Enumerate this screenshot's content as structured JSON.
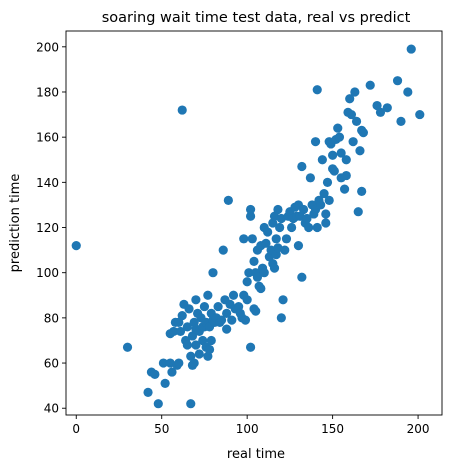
{
  "chart_data": {
    "type": "scatter",
    "title": "soaring wait time test data, real vs predict",
    "xlabel": "real time",
    "ylabel": "prediction time",
    "xlim": [
      -6,
      214
    ],
    "ylim": [
      37,
      207
    ],
    "xticks": [
      0,
      50,
      100,
      150,
      200
    ],
    "yticks": [
      40,
      60,
      80,
      100,
      120,
      140,
      160,
      180,
      200
    ],
    "grid": false,
    "color": "#1f77b4",
    "points": [
      [
        0,
        112
      ],
      [
        30,
        67
      ],
      [
        42,
        47
      ],
      [
        44,
        56
      ],
      [
        46,
        55
      ],
      [
        48,
        42
      ],
      [
        51,
        60
      ],
      [
        52,
        51
      ],
      [
        55,
        60
      ],
      [
        55,
        73
      ],
      [
        56,
        56
      ],
      [
        57,
        74
      ],
      [
        58,
        78
      ],
      [
        59,
        59
      ],
      [
        60,
        60
      ],
      [
        60,
        78
      ],
      [
        61,
        74
      ],
      [
        62,
        81
      ],
      [
        62,
        172
      ],
      [
        63,
        86
      ],
      [
        64,
        70
      ],
      [
        65,
        68
      ],
      [
        65,
        76
      ],
      [
        66,
        84
      ],
      [
        67,
        42
      ],
      [
        67,
        63
      ],
      [
        68,
        72
      ],
      [
        68,
        59
      ],
      [
        69,
        60
      ],
      [
        69,
        78
      ],
      [
        70,
        88
      ],
      [
        70,
        68
      ],
      [
        70,
        75
      ],
      [
        71,
        82
      ],
      [
        72,
        64
      ],
      [
        72,
        74
      ],
      [
        73,
        80
      ],
      [
        74,
        76
      ],
      [
        74,
        70
      ],
      [
        75,
        85
      ],
      [
        75,
        76
      ],
      [
        76,
        78
      ],
      [
        76,
        67
      ],
      [
        77,
        90
      ],
      [
        77,
        63
      ],
      [
        78,
        76
      ],
      [
        78,
        66
      ],
      [
        79,
        70
      ],
      [
        79,
        82
      ],
      [
        80,
        100
      ],
      [
        80,
        79
      ],
      [
        81,
        78
      ],
      [
        82,
        80
      ],
      [
        83,
        85
      ],
      [
        84,
        78
      ],
      [
        85,
        79
      ],
      [
        86,
        110
      ],
      [
        87,
        88
      ],
      [
        88,
        82
      ],
      [
        88,
        75
      ],
      [
        89,
        132
      ],
      [
        90,
        86
      ],
      [
        91,
        79
      ],
      [
        92,
        90
      ],
      [
        93,
        84
      ],
      [
        94,
        84
      ],
      [
        95,
        85
      ],
      [
        96,
        82
      ],
      [
        97,
        80
      ],
      [
        98,
        115
      ],
      [
        98,
        90
      ],
      [
        99,
        79
      ],
      [
        100,
        88
      ],
      [
        100,
        96
      ],
      [
        101,
        100
      ],
      [
        102,
        67
      ],
      [
        102,
        125
      ],
      [
        102,
        128
      ],
      [
        103,
        115
      ],
      [
        104,
        105
      ],
      [
        104,
        84
      ],
      [
        105,
        83
      ],
      [
        105,
        100
      ],
      [
        106,
        98
      ],
      [
        106,
        110
      ],
      [
        107,
        94
      ],
      [
        108,
        112
      ],
      [
        108,
        93
      ],
      [
        109,
        102
      ],
      [
        110,
        120
      ],
      [
        110,
        100
      ],
      [
        111,
        113
      ],
      [
        112,
        118
      ],
      [
        113,
        107
      ],
      [
        114,
        110
      ],
      [
        115,
        122
      ],
      [
        115,
        104
      ],
      [
        116,
        125
      ],
      [
        116,
        102
      ],
      [
        117,
        115
      ],
      [
        117,
        108
      ],
      [
        118,
        128
      ],
      [
        118,
        111
      ],
      [
        119,
        120
      ],
      [
        120,
        80
      ],
      [
        120,
        124
      ],
      [
        121,
        88
      ],
      [
        122,
        110
      ],
      [
        123,
        115
      ],
      [
        124,
        125
      ],
      [
        125,
        127
      ],
      [
        126,
        120
      ],
      [
        127,
        124
      ],
      [
        128,
        129
      ],
      [
        129,
        125
      ],
      [
        130,
        112
      ],
      [
        130,
        130
      ],
      [
        131,
        125
      ],
      [
        132,
        147
      ],
      [
        132,
        98
      ],
      [
        133,
        128
      ],
      [
        134,
        122
      ],
      [
        135,
        124
      ],
      [
        136,
        120
      ],
      [
        137,
        142
      ],
      [
        138,
        130
      ],
      [
        139,
        126
      ],
      [
        140,
        128
      ],
      [
        140,
        158
      ],
      [
        141,
        181
      ],
      [
        141,
        120
      ],
      [
        142,
        132
      ],
      [
        143,
        130
      ],
      [
        144,
        150
      ],
      [
        145,
        135
      ],
      [
        146,
        126
      ],
      [
        146,
        122
      ],
      [
        147,
        140
      ],
      [
        148,
        158
      ],
      [
        148,
        132
      ],
      [
        149,
        157
      ],
      [
        150,
        146
      ],
      [
        150,
        152
      ],
      [
        151,
        145
      ],
      [
        152,
        159
      ],
      [
        153,
        164
      ],
      [
        154,
        160
      ],
      [
        155,
        153
      ],
      [
        155,
        142
      ],
      [
        157,
        137
      ],
      [
        158,
        150
      ],
      [
        158,
        143
      ],
      [
        159,
        171
      ],
      [
        160,
        177
      ],
      [
        161,
        170
      ],
      [
        162,
        158
      ],
      [
        163,
        180
      ],
      [
        164,
        167
      ],
      [
        165,
        127
      ],
      [
        166,
        154
      ],
      [
        167,
        136
      ],
      [
        167,
        163
      ],
      [
        168,
        162
      ],
      [
        172,
        183
      ],
      [
        176,
        174
      ],
      [
        178,
        171
      ],
      [
        182,
        173
      ],
      [
        188,
        185
      ],
      [
        190,
        167
      ],
      [
        194,
        180
      ],
      [
        196,
        199
      ],
      [
        201,
        170
      ]
    ]
  }
}
